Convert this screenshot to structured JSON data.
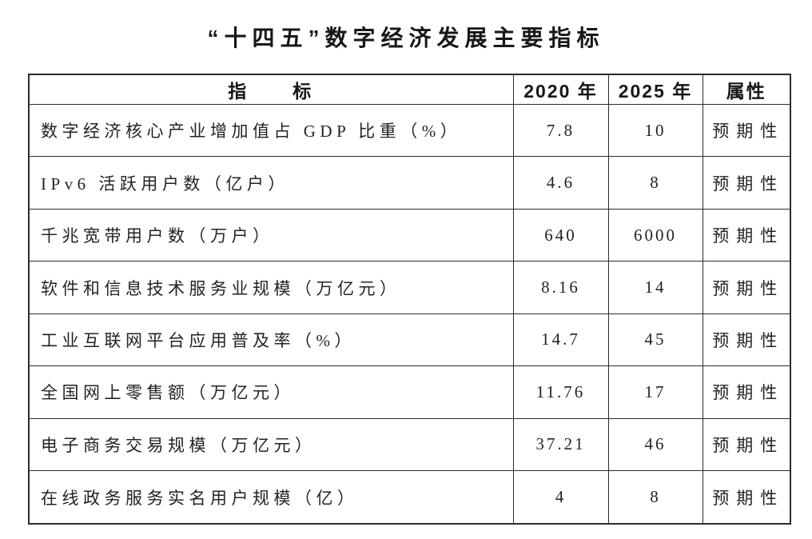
{
  "page": {
    "title": "“十四五”数字经济发展主要指标"
  },
  "colors": {
    "background": "#ffffff",
    "border": "#2b2b2b",
    "text": "#1c1c1c"
  },
  "table": {
    "headers": {
      "indicator": "指　　标",
      "y2020": "2020 年",
      "y2025": "2025 年",
      "attribute": "属性"
    },
    "rows": [
      {
        "indicator": "数字经济核心产业增加值占 GDP 比重（%）",
        "y2020": "7.8",
        "y2025": "10",
        "attribute": "预期性"
      },
      {
        "indicator": "IPv6 活跃用户数（亿户）",
        "y2020": "4.6",
        "y2025": "8",
        "attribute": "预期性"
      },
      {
        "indicator": "千兆宽带用户数（万户）",
        "y2020": "640",
        "y2025": "6000",
        "attribute": "预期性"
      },
      {
        "indicator": "软件和信息技术服务业规模（万亿元）",
        "y2020": "8.16",
        "y2025": "14",
        "attribute": "预期性"
      },
      {
        "indicator": "工业互联网平台应用普及率（%）",
        "y2020": "14.7",
        "y2025": "45",
        "attribute": "预期性"
      },
      {
        "indicator": "全国网上零售额（万亿元）",
        "y2020": "11.76",
        "y2025": "17",
        "attribute": "预期性"
      },
      {
        "indicator": "电子商务交易规模（万亿元）",
        "y2020": "37.21",
        "y2025": "46",
        "attribute": "预期性"
      },
      {
        "indicator": "在线政务服务实名用户规模（亿）",
        "y2020": "4",
        "y2025": "8",
        "attribute": "预期性"
      }
    ]
  }
}
